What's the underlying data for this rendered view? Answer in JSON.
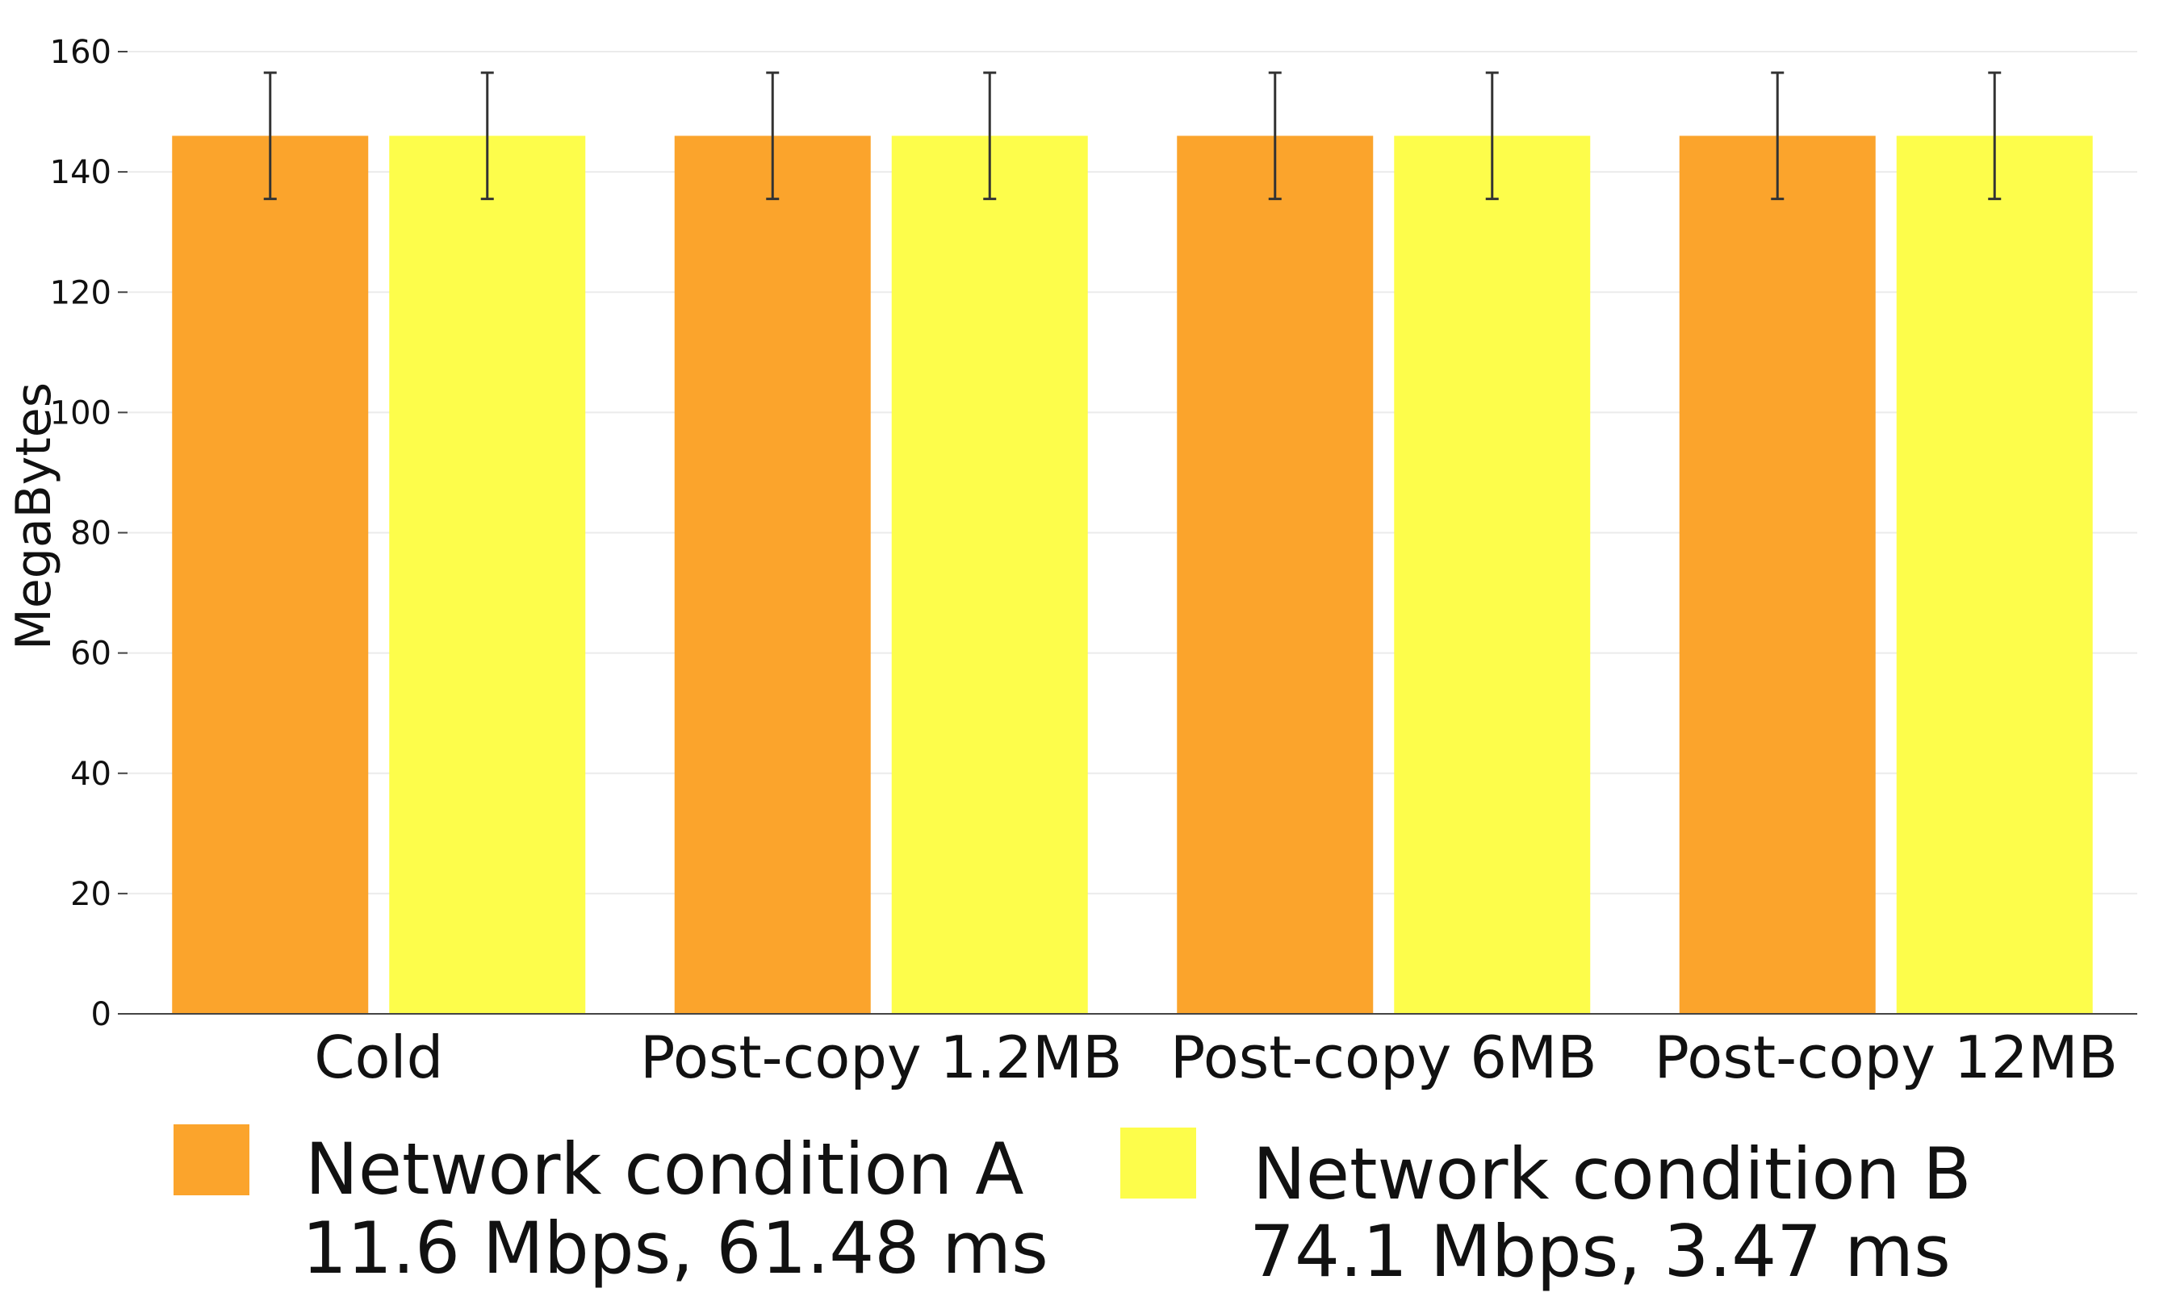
{
  "chart_data": {
    "type": "bar",
    "ylabel": "MegaBytes",
    "ylim": [
      0,
      160
    ],
    "yticks": [
      0,
      20,
      40,
      60,
      80,
      100,
      120,
      140,
      160
    ],
    "grid": true,
    "legend_position": "bottom",
    "categories": [
      "Cold",
      "Post-copy 1.2MB",
      "Post-copy 6MB",
      "Post-copy 12MB"
    ],
    "series": [
      {
        "name": "Network condition A",
        "subtitle": "11.6 Mbps, 61.48 ms",
        "color": "#fba42c",
        "values": [
          146,
          146,
          146,
          146
        ],
        "error": [
          10.5,
          10.5,
          10.5,
          10.5
        ]
      },
      {
        "name": "Network condition B",
        "subtitle": "74.1 Mbps, 3.47 ms",
        "color": "#fdfd4b",
        "values": [
          146,
          146,
          146,
          146
        ],
        "error": [
          10.5,
          10.5,
          10.5,
          10.5
        ]
      }
    ]
  }
}
